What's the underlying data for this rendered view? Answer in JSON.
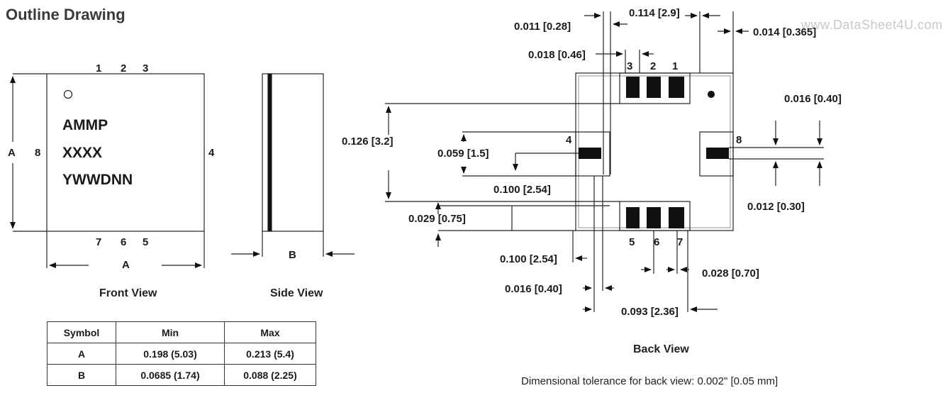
{
  "title": "Outline Drawing",
  "watermark": "www.DataSheet4U.com",
  "front_view": {
    "caption": "Front View",
    "marking": [
      "AMMP",
      "XXXX",
      "YWWDNN"
    ],
    "pins_top": [
      "1",
      "2",
      "3"
    ],
    "pins_bottom": [
      "7",
      "6",
      "5"
    ],
    "pin_left": "8",
    "pin_right": "4",
    "dim_height": "A",
    "dim_width": "A"
  },
  "side_view": {
    "caption": "Side View",
    "dim": "B"
  },
  "table": {
    "headers": [
      "Symbol",
      "Min",
      "Max"
    ],
    "rows": [
      [
        "A",
        "0.198 (5.03)",
        "0.213 (5.4)"
      ],
      [
        "B",
        "0.0685 (1.74)",
        "0.088 (2.25)"
      ]
    ]
  },
  "back_view": {
    "caption": "Back View",
    "pins_top": [
      "3",
      "2",
      "1"
    ],
    "pins_bottom": [
      "5",
      "6",
      "7"
    ],
    "pin_left": "4",
    "pin_right": "8",
    "dims": {
      "d_011": "0.011 [0.28]",
      "d_114": "0.114 [2.9]",
      "d_014": "0.014 [0.365]",
      "d_018": "0.018 [0.46]",
      "d_016_right": "0.016 [0.40]",
      "d_126": "0.126 [3.2]",
      "d_059": "0.059 [1.5]",
      "d_100_mid": "0.100 [2.54]",
      "d_012": "0.012 [0.30]",
      "d_029": "0.029 [0.75]",
      "d_100_bottom": "0.100 [2.54]",
      "d_028": "0.028 [0.70]",
      "d_016_bottom": "0.016 [0.40]",
      "d_093": "0.093 [2.36]"
    }
  },
  "tolerance_note": "Dimensional tolerance for back view:  0.002\" [0.05 mm]"
}
